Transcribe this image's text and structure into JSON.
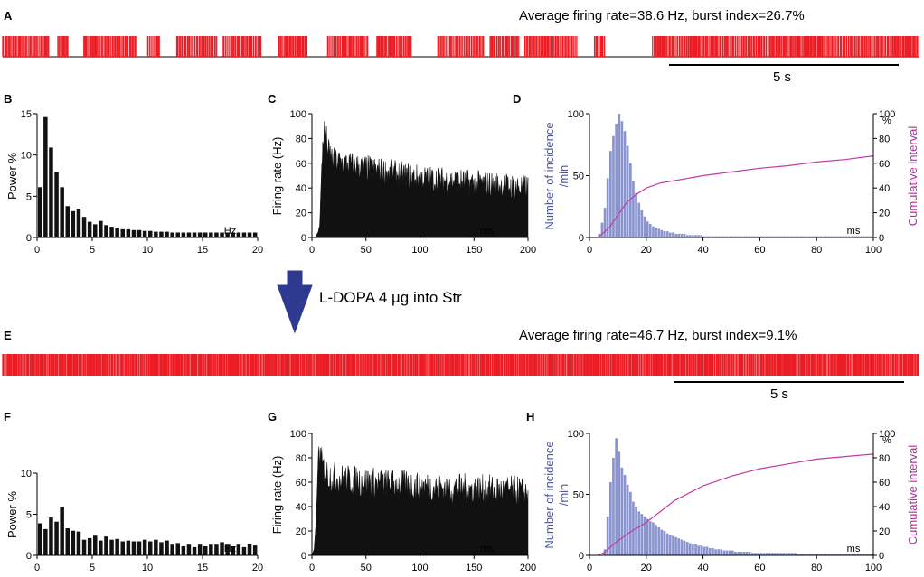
{
  "colors": {
    "spike": "#ec1c24",
    "hist": "#8a95cf",
    "hist_text": "#4a55a5",
    "cumulative": "#c23aa6",
    "bar": "#111111",
    "arrow": "#2e3a8f"
  },
  "treatment": {
    "label": "L-DOPA 4 µg into Str"
  },
  "panels": {
    "A": {
      "label": "A",
      "title": "Average firing rate=38.6 Hz, burst index=26.7%",
      "scale": "5 s"
    },
    "B": {
      "label": "B"
    },
    "C": {
      "label": "C"
    },
    "D": {
      "label": "D"
    },
    "E": {
      "label": "E",
      "title": "Average firing rate=46.7 Hz, burst index=9.1%",
      "scale": "5 s"
    },
    "F": {
      "label": "F"
    },
    "G": {
      "label": "G"
    },
    "H": {
      "label": "H"
    }
  },
  "chart_data": [
    {
      "id": "A",
      "type": "raster",
      "title": "Average firing rate=38.6 Hz, burst index=26.7%",
      "duration_s": 15.8,
      "scale_bar": "5 s",
      "firing_rate_hz": 38.6,
      "burst_index": "26.7%",
      "active_segments_s": [
        [
          0,
          0.8
        ],
        [
          0.95,
          1.15
        ],
        [
          1.4,
          2.3
        ],
        [
          2.5,
          2.7
        ],
        [
          3.0,
          3.7
        ],
        [
          3.8,
          4.45
        ],
        [
          4.75,
          5.25
        ],
        [
          5.6,
          6.3
        ],
        [
          6.45,
          7.05
        ],
        [
          7.5,
          8.3
        ],
        [
          8.4,
          8.9
        ],
        [
          9.0,
          9.9
        ],
        [
          10.2,
          10.4
        ],
        [
          11.2,
          15.8
        ]
      ]
    },
    {
      "id": "B",
      "type": "bar",
      "title": "",
      "xlabel": "Hz",
      "ylabel": "Power %",
      "xlim": [
        0,
        20
      ],
      "ylim": [
        0,
        15
      ],
      "xticks": [
        0,
        5,
        10,
        15,
        20
      ],
      "yticks": [
        0,
        5,
        10,
        15
      ],
      "bin_start": 0,
      "bin_width": 0.5,
      "values": [
        6.1,
        14.6,
        10.9,
        7.9,
        6.1,
        3.8,
        3.2,
        3.5,
        2.5,
        1.9,
        1.6,
        2.0,
        1.5,
        1.3,
        1.2,
        1.0,
        1.0,
        0.9,
        0.9,
        0.8,
        0.8,
        0.7,
        0.7,
        0.7,
        0.6,
        0.6,
        0.6,
        0.6,
        0.6,
        0.6,
        0.6,
        0.6,
        0.6,
        0.6,
        0.6,
        0.6,
        0.6,
        0.6,
        0.6,
        0.6
      ]
    },
    {
      "id": "C",
      "type": "area",
      "title": "",
      "xlabel": "ms",
      "ylabel": "Firing rate (Hz)",
      "xlim": [
        0,
        200
      ],
      "ylim": [
        0,
        100
      ],
      "xticks": [
        0,
        50,
        100,
        150,
        200
      ],
      "yticks": [
        0,
        20,
        40,
        60,
        80,
        100
      ],
      "x": [
        0,
        3,
        6,
        8,
        10,
        12,
        15,
        20,
        30,
        50,
        75,
        100,
        125,
        150,
        175,
        200
      ],
      "values": [
        0,
        0,
        5,
        30,
        75,
        90,
        70,
        62,
        60,
        56,
        52,
        48,
        46,
        44,
        42,
        40
      ]
    },
    {
      "id": "D",
      "type": "bar",
      "title": "",
      "xlabel": "ms",
      "ylabel": "Number of incidence /min",
      "y2label": "Cumulative interval",
      "y2unit": "%",
      "xlim": [
        0,
        100
      ],
      "ylim": [
        0,
        100
      ],
      "y2lim": [
        0,
        100
      ],
      "xticks": [
        0,
        20,
        40,
        60,
        80,
        100
      ],
      "yticks": [
        0,
        50,
        100
      ],
      "y2ticks": [
        0,
        20,
        40,
        60,
        80,
        100
      ],
      "bin_start": 3,
      "bin_width": 1,
      "values": [
        3,
        12,
        24,
        48,
        70,
        82,
        92,
        100,
        94,
        86,
        74,
        60,
        46,
        36,
        28,
        22,
        17,
        13,
        11,
        9,
        8,
        7,
        6,
        5,
        5,
        4,
        4,
        3,
        3,
        3,
        3,
        2,
        2,
        2,
        2,
        2,
        2,
        1,
        1,
        1,
        1,
        1,
        1,
        1,
        1,
        1,
        1,
        1,
        1,
        1,
        1,
        1,
        1,
        1,
        1,
        1,
        1,
        1,
        1,
        1,
        1,
        1,
        1,
        1,
        1,
        1,
        1,
        1,
        1,
        1,
        1,
        1,
        1,
        1,
        1,
        1,
        1,
        1,
        1,
        1,
        1,
        1,
        1,
        1,
        1,
        1,
        1,
        1,
        1,
        1,
        1,
        1,
        1,
        1,
        1,
        1,
        1
      ],
      "cumulative_x": [
        3,
        7,
        10,
        13,
        16,
        20,
        25,
        30,
        40,
        50,
        60,
        70,
        80,
        90,
        100
      ],
      "cumulative_y": [
        0,
        8,
        18,
        28,
        34,
        40,
        44,
        46,
        50,
        53,
        56,
        58,
        61,
        63,
        66
      ]
    },
    {
      "id": "E",
      "type": "raster",
      "title": "Average firing rate=46.7 Hz, burst index=9.1%",
      "duration_s": 15.8,
      "scale_bar": "5 s",
      "firing_rate_hz": 46.7,
      "burst_index": "9.1%",
      "active_segments_s": [
        [
          0,
          15.8
        ]
      ]
    },
    {
      "id": "F",
      "type": "bar",
      "title": "",
      "xlabel": "Hz",
      "ylabel": "Power %",
      "xlim": [
        0,
        20
      ],
      "ylim": [
        0,
        10
      ],
      "xticks": [
        0,
        5,
        10,
        15,
        20
      ],
      "yticks": [
        0,
        5,
        10
      ],
      "bin_start": 0,
      "bin_width": 0.5,
      "values": [
        3.9,
        3.2,
        4.6,
        4.1,
        5.9,
        3.3,
        3.0,
        2.9,
        1.9,
        2.1,
        2.4,
        1.8,
        2.3,
        1.9,
        2.0,
        1.7,
        1.8,
        1.7,
        1.7,
        1.9,
        1.7,
        1.9,
        1.6,
        1.8,
        1.3,
        1.5,
        1.1,
        1.3,
        1.0,
        1.3,
        1.1,
        1.3,
        1.3,
        1.6,
        1.3,
        1.1,
        1.3,
        1.0,
        1.4,
        1.2
      ]
    },
    {
      "id": "G",
      "type": "area",
      "title": "",
      "xlabel": "ms",
      "ylabel": "Firing rate (Hz)",
      "xlim": [
        0,
        200
      ],
      "ylim": [
        0,
        100
      ],
      "xticks": [
        0,
        50,
        100,
        150,
        200
      ],
      "yticks": [
        0,
        20,
        40,
        60,
        80,
        100
      ],
      "x": [
        0,
        2,
        4,
        6,
        8,
        10,
        15,
        20,
        30,
        50,
        75,
        100,
        125,
        150,
        175,
        200
      ],
      "values": [
        0,
        5,
        30,
        85,
        80,
        72,
        66,
        64,
        62,
        60,
        58,
        57,
        55,
        54,
        53,
        52
      ]
    },
    {
      "id": "H",
      "type": "bar",
      "title": "",
      "xlabel": "ms",
      "ylabel": "Number of incidence /min",
      "y2label": "Cumulative interval",
      "y2unit": "%",
      "xlim": [
        0,
        100
      ],
      "ylim": [
        0,
        100
      ],
      "y2lim": [
        0,
        100
      ],
      "xticks": [
        0,
        20,
        40,
        60,
        80,
        100
      ],
      "yticks": [
        0,
        50,
        100
      ],
      "y2ticks": [
        0,
        20,
        40,
        60,
        80,
        100
      ],
      "bin_start": 3,
      "bin_width": 1,
      "values": [
        0,
        0,
        5,
        32,
        60,
        80,
        96,
        85,
        72,
        66,
        58,
        52,
        44,
        40,
        36,
        34,
        32,
        30,
        28,
        27,
        25,
        23,
        21,
        20,
        18,
        17,
        16,
        15,
        14,
        13,
        12,
        11,
        10,
        9,
        9,
        8,
        8,
        7,
        7,
        6,
        6,
        5,
        5,
        5,
        4,
        4,
        4,
        4,
        3,
        3,
        3,
        3,
        3,
        3,
        2,
        2,
        2,
        2,
        2,
        2,
        2,
        2,
        2,
        2,
        2,
        2,
        2,
        2,
        2,
        2,
        1,
        1,
        1,
        1,
        1,
        1,
        1,
        1,
        1,
        1,
        1,
        1,
        1,
        1,
        1,
        1,
        1,
        1,
        1,
        1,
        1,
        1,
        1,
        1,
        1,
        1,
        1
      ],
      "cumulative_x": [
        3,
        5,
        10,
        15,
        20,
        25,
        30,
        40,
        50,
        60,
        70,
        80,
        90,
        100
      ],
      "cumulative_y": [
        0,
        2,
        12,
        20,
        27,
        36,
        45,
        57,
        65,
        71,
        75,
        79,
        81,
        83
      ]
    }
  ]
}
